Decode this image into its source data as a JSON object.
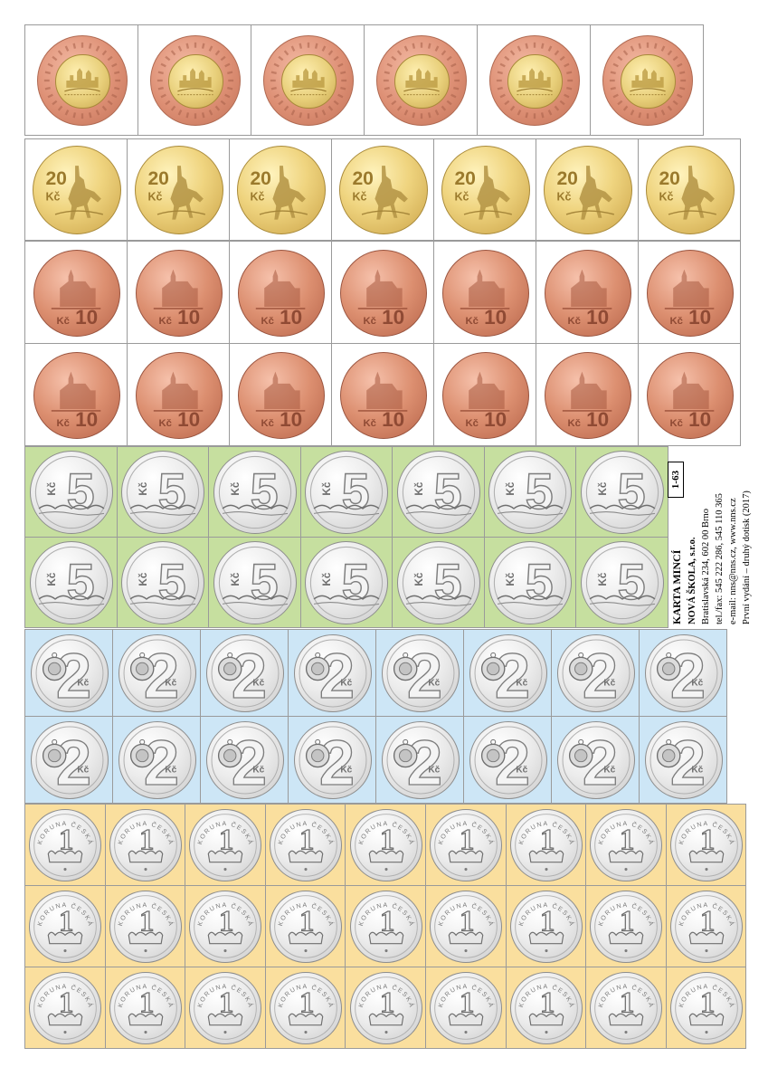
{
  "sheet": {
    "code": "1-63",
    "title": "KARTA MINCÍ",
    "publisher": "NOVÁ ŠKOLA, s.r.o.",
    "address": "Bratislavská 234, 602 00 Brno",
    "phone": "tel./fax: 545 222 286, 545 110 365",
    "contact": "e-mail: nns@nns.cz, www.nns.cz",
    "edition": "První vydání – druhý dotisk (2017)"
  },
  "coins": {
    "c50": {
      "inscription": "ČESKÁ REPUBLIKA · PRAGA MATER URBIUM",
      "count": 6
    },
    "c20": {
      "value": "20",
      "unit": "Kč",
      "count": 7
    },
    "c10": {
      "value": "10",
      "unit": "Kč",
      "count": 14
    },
    "c5": {
      "value": "5",
      "unit": "Kč",
      "count": 14
    },
    "c2": {
      "value": "2",
      "unit": "Kč",
      "count": 16
    },
    "c1": {
      "value": "1",
      "legend": "KORUNA ČESKÁ",
      "count": 27
    }
  },
  "colors": {
    "band_5": "#c6df9f",
    "band_2": "#cde6f6",
    "band_1": "#fadf9e",
    "white_cells": "#ffffff"
  }
}
